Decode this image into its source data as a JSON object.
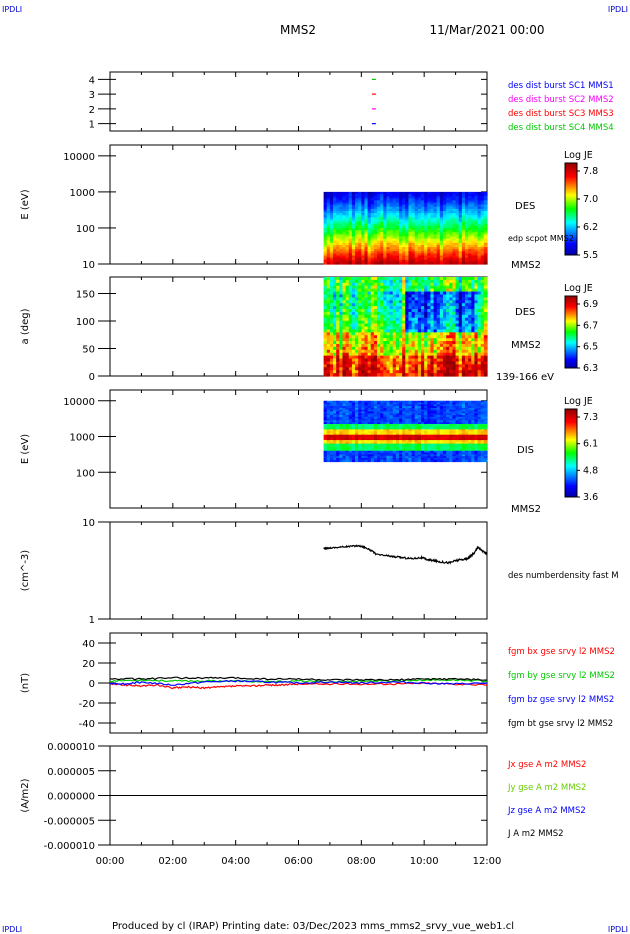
{
  "header": {
    "corner_tl": "IPDLI",
    "corner_tr": "IPDLI",
    "corner_bl": "IPDLI",
    "corner_br": "IPDLI",
    "spacecraft": "MMS2",
    "datetime": "11/Mar/2021 00:00"
  },
  "footer": {
    "text": "Produced by cl (IRAP)   Printing date: 03/Dec/2023   mms_mms2_srvy_vue_web1.cl"
  },
  "colors": {
    "blue": "#0000ff",
    "magenta": "#ff00ff",
    "red": "#ff0000",
    "green": "#00c800",
    "black": "#000000",
    "yellow_green": "#66cc00"
  },
  "chart_data": [
    {
      "type": "scatter",
      "id": "burst",
      "y_ticks": [
        "1",
        "2",
        "3",
        "4"
      ],
      "ylim": [
        0.5,
        4.5
      ],
      "legend": [
        {
          "label": "des dist burst SC1 MMS1",
          "color": "#0000ff"
        },
        {
          "label": "des dist burst SC2 MMS2",
          "color": "#ff00ff"
        },
        {
          "label": "des dist burst SC3 MMS3",
          "color": "#ff0000"
        },
        {
          "label": "des dist burst SC4 MMS4",
          "color": "#00c800"
        }
      ],
      "marks": [
        {
          "x": 8.4,
          "y": 1,
          "color": "#0000ff"
        },
        {
          "x": 8.4,
          "y": 2,
          "color": "#ff00ff"
        },
        {
          "x": 8.4,
          "y": 3,
          "color": "#ff0000"
        },
        {
          "x": 8.4,
          "y": 4,
          "color": "#00c800"
        }
      ]
    },
    {
      "type": "heatmap",
      "id": "des_energy",
      "ylabel": "E (eV)",
      "y_scale": "log",
      "ylim": [
        10,
        20000
      ],
      "y_ticks": [
        "10",
        "100",
        "1000",
        "10000"
      ],
      "data_x_range": [
        6.8,
        12.0
      ],
      "data_y_range": [
        10,
        1000
      ],
      "side_labels": [
        "DES",
        "edp scpot MMS2",
        "MMS2"
      ],
      "colorbar": {
        "title": "Log JE",
        "ticks": [
          "7.8",
          "7.0",
          "6.2",
          "5.5"
        ],
        "range": [
          5.5,
          7.9
        ]
      }
    },
    {
      "type": "heatmap",
      "id": "des_pitch",
      "ylabel": "a (deg)",
      "ylim": [
        0,
        180
      ],
      "y_ticks": [
        "0",
        "50",
        "100",
        "150"
      ],
      "data_x_range": [
        6.8,
        12.0
      ],
      "side_labels": [
        "DES",
        "MMS2",
        "139-166 eV"
      ],
      "colorbar": {
        "title": "Log JE",
        "ticks": [
          "6.9",
          "6.7",
          "6.5",
          "6.3"
        ],
        "range": [
          6.3,
          6.95
        ]
      }
    },
    {
      "type": "heatmap",
      "id": "dis_energy",
      "ylabel": "E (eV)",
      "y_scale": "log",
      "ylim": [
        10,
        20000
      ],
      "y_ticks": [
        "100",
        "1000",
        "10000"
      ],
      "data_x_range": [
        6.8,
        12.0
      ],
      "data_y_range": [
        200,
        10000
      ],
      "side_labels": [
        "DIS",
        "MMS2"
      ],
      "colorbar": {
        "title": "Log JE",
        "ticks": [
          "7.3",
          "6.1",
          "4.8",
          "3.6"
        ],
        "range": [
          3.6,
          7.4
        ]
      }
    },
    {
      "type": "line",
      "id": "density",
      "ylabel": "(cm^-3)",
      "y_scale": "log",
      "ylim": [
        1,
        10
      ],
      "y_ticks": [
        "1",
        "10"
      ],
      "series": [
        {
          "name": "des numberdensity fast M",
          "color": "#000000",
          "x": [
            6.8,
            7.0,
            7.3,
            7.6,
            7.9,
            8.1,
            8.3,
            8.5,
            8.8,
            9.0,
            9.3,
            9.6,
            9.9,
            10.1,
            10.3,
            10.5,
            10.8,
            11.0,
            11.2,
            11.4,
            11.5,
            11.6,
            11.7,
            11.8,
            11.9,
            12.0
          ],
          "y": [
            5.3,
            5.4,
            5.5,
            5.6,
            5.7,
            5.5,
            5.1,
            4.6,
            4.5,
            4.4,
            4.3,
            4.2,
            4.3,
            4.1,
            4.0,
            3.9,
            3.8,
            4.0,
            4.1,
            4.2,
            4.5,
            4.8,
            5.5,
            5.2,
            4.9,
            4.8
          ]
        }
      ]
    },
    {
      "type": "line",
      "id": "bfield",
      "ylabel": "(nT)",
      "ylim": [
        -50,
        50
      ],
      "y_ticks": [
        "-40",
        "-20",
        "0",
        "20",
        "40"
      ],
      "series": [
        {
          "name": "fgm bx gse srvy l2 MMS2",
          "color": "#ff0000",
          "x": [
            0,
            0.5,
            1.0,
            1.5,
            2.0,
            2.5,
            3.0,
            3.5,
            4.0,
            4.5,
            5.0,
            5.5,
            6.0,
            7.0,
            8.0,
            9.0,
            10.0,
            11.0,
            12.0
          ],
          "y": [
            -1,
            -2,
            -3,
            -2,
            -5,
            -4,
            -5,
            -4,
            -3,
            -3,
            -2,
            -2,
            -1,
            -1,
            -1,
            -1,
            0,
            -1,
            -2
          ]
        },
        {
          "name": "fgm by gse srvy l2 MMS2",
          "color": "#00c800",
          "x": [
            0,
            1.0,
            2.0,
            3.0,
            4.0,
            5.0,
            6.0,
            7.0,
            8.0,
            9.0,
            10.0,
            11.0,
            12.0
          ],
          "y": [
            2,
            3,
            2,
            2,
            2,
            1,
            2,
            1,
            2,
            2,
            3,
            3,
            2
          ]
        },
        {
          "name": "fgm bz gse srvy l2 MMS2",
          "color": "#0000ff",
          "x": [
            0,
            0.5,
            1.0,
            2.0,
            3.0,
            4.0,
            5.0,
            6.0,
            7.0,
            8.0,
            9.0,
            10.0,
            11.0,
            12.0
          ],
          "y": [
            0,
            -1,
            1,
            -2,
            1,
            2,
            1,
            0,
            1,
            0,
            1,
            0,
            -1,
            0
          ]
        },
        {
          "name": "fgm bt gse srvy l2 MMS2",
          "color": "#000000",
          "x": [
            0,
            1.0,
            2.0,
            3.0,
            4.0,
            5.0,
            6.0,
            7.0,
            8.0,
            9.0,
            10.0,
            11.0,
            12.0
          ],
          "y": [
            4,
            4,
            5,
            5,
            5,
            4,
            4,
            3,
            3,
            3,
            4,
            4,
            3
          ]
        }
      ]
    },
    {
      "type": "line",
      "id": "current",
      "ylabel": "(A/m2)",
      "ylim": [
        -1e-05,
        1e-05
      ],
      "y_ticks": [
        "-0.000010",
        "-0.000005",
        "0.000000",
        "0.000005",
        "0.000010"
      ],
      "series": [
        {
          "name": "Jx gse A m2 MMS2",
          "color": "#ff0000",
          "x": [
            0,
            12
          ],
          "y": [
            0,
            0
          ]
        },
        {
          "name": "Jy gse A m2 MMS2",
          "color": "#66cc00",
          "x": [
            0,
            12
          ],
          "y": [
            0,
            0
          ]
        },
        {
          "name": "Jz gse A m2 MMS2",
          "color": "#0000ff",
          "x": [
            0,
            12
          ],
          "y": [
            0,
            0
          ]
        },
        {
          "name": "J A m2 MMS2",
          "color": "#000000",
          "x": [
            0,
            12
          ],
          "y": [
            0,
            0
          ]
        }
      ]
    }
  ],
  "x_axis": {
    "range_hours": [
      0,
      12
    ],
    "ticks": [
      "00:00",
      "02:00",
      "04:00",
      "06:00",
      "08:00",
      "10:00",
      "12:00"
    ]
  }
}
